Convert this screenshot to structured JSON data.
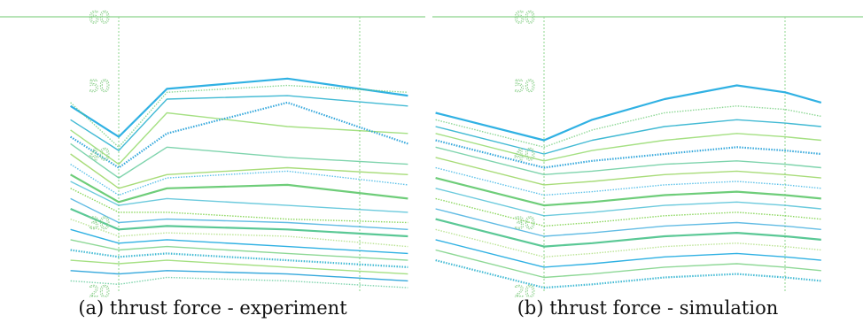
{
  "colors": {
    "frame": "#9fdc9f",
    "series_colors": [
      "#19a8e0",
      "#5ec86a",
      "#2db3cf",
      "#7fd34e",
      "#1f9fd8",
      "#48c28a",
      "#9fd86a"
    ]
  },
  "chart_data": [
    {
      "type": "line",
      "caption": "(a) thrust force - experiment",
      "ylim": [
        20,
        60
      ],
      "xlim": [
        0,
        10
      ],
      "yticks": [
        "60",
        "50",
        "40",
        "30",
        "20"
      ],
      "x": [
        -2,
        0,
        2,
        7,
        12
      ],
      "series": [
        {
          "values": [
            47,
            42.5,
            49.5,
            51,
            48.5
          ]
        },
        {
          "values": [
            47.5,
            41,
            49,
            50,
            49
          ]
        },
        {
          "values": [
            45,
            40.5,
            48,
            48.5,
            47
          ]
        },
        {
          "values": [
            43.5,
            38.5,
            46,
            44,
            43
          ]
        },
        {
          "values": [
            42.5,
            38,
            43,
            47.5,
            41.5
          ]
        },
        {
          "values": [
            41.5,
            36.5,
            41,
            39.5,
            38.5
          ]
        },
        {
          "values": [
            40,
            35,
            37,
            38,
            37
          ]
        },
        {
          "values": [
            38.5,
            34,
            36.5,
            37.5,
            35.5
          ]
        },
        {
          "values": [
            37,
            33,
            35,
            35.5,
            33.5
          ]
        },
        {
          "values": [
            36,
            32.5,
            33.5,
            32.5,
            31.5
          ]
        },
        {
          "values": [
            35,
            31.5,
            31.5,
            30.5,
            30
          ]
        },
        {
          "values": [
            33.5,
            30,
            30.5,
            30,
            29
          ]
        },
        {
          "values": [
            32,
            29,
            29.5,
            29,
            28
          ]
        },
        {
          "values": [
            30.5,
            28,
            28.5,
            28,
            26.5
          ]
        },
        {
          "values": [
            29,
            27,
            27.5,
            26.5,
            25.5
          ]
        },
        {
          "values": [
            27.5,
            26,
            26.5,
            25.5,
            24.5
          ]
        },
        {
          "values": [
            26,
            25,
            25.5,
            24.5,
            23.5
          ]
        },
        {
          "values": [
            24.5,
            24,
            24.5,
            23.5,
            22.5
          ]
        },
        {
          "values": [
            23,
            22.5,
            23,
            22.5,
            21.5
          ]
        },
        {
          "values": [
            21.5,
            21,
            22,
            21.5,
            20.5
          ]
        }
      ]
    },
    {
      "type": "line",
      "caption": "(b) thrust force - simulation",
      "ylim": [
        20,
        60
      ],
      "xlim": [
        0,
        10
      ],
      "yticks": [
        "60",
        "50",
        "40",
        "30",
        "20"
      ],
      "x": [
        -4.5,
        0,
        2,
        5,
        8,
        10,
        11.5
      ],
      "series": [
        {
          "values": [
            46,
            42,
            45,
            48,
            50,
            49,
            47.5
          ]
        },
        {
          "values": [
            45,
            41,
            43.5,
            46,
            47,
            46.5,
            45.5
          ]
        },
        {
          "values": [
            44,
            40,
            42,
            44,
            45,
            44.5,
            44
          ]
        },
        {
          "values": [
            43,
            39,
            40.5,
            42,
            43,
            42.5,
            42
          ]
        },
        {
          "values": [
            42,
            38,
            39,
            40,
            41,
            40.5,
            40
          ]
        },
        {
          "values": [
            41,
            37,
            37.5,
            38.5,
            39,
            38.5,
            38
          ]
        },
        {
          "values": [
            39.5,
            35.5,
            36,
            37,
            37.5,
            37,
            36.5
          ]
        },
        {
          "values": [
            38,
            34,
            34.5,
            35.5,
            36,
            35.5,
            35
          ]
        },
        {
          "values": [
            36.5,
            32.5,
            33,
            34,
            34.5,
            34,
            33.5
          ]
        },
        {
          "values": [
            35,
            31,
            31.5,
            32.5,
            33,
            32.5,
            32
          ]
        },
        {
          "values": [
            33.5,
            29.5,
            30,
            31,
            31.5,
            31,
            30.5
          ]
        },
        {
          "values": [
            32,
            28,
            28.5,
            29.5,
            30,
            29.5,
            29
          ]
        },
        {
          "values": [
            30.5,
            26.5,
            27,
            28,
            28.5,
            28,
            27.5
          ]
        },
        {
          "values": [
            29,
            25,
            25.5,
            26.5,
            27,
            26.5,
            26
          ]
        },
        {
          "values": [
            27.5,
            23.5,
            24,
            25,
            25.5,
            25,
            24.5
          ]
        },
        {
          "values": [
            26,
            22,
            22.5,
            23.5,
            24,
            23.5,
            23
          ]
        },
        {
          "values": [
            24.5,
            20.5,
            21,
            22,
            22.5,
            22,
            21.5
          ]
        }
      ]
    }
  ]
}
